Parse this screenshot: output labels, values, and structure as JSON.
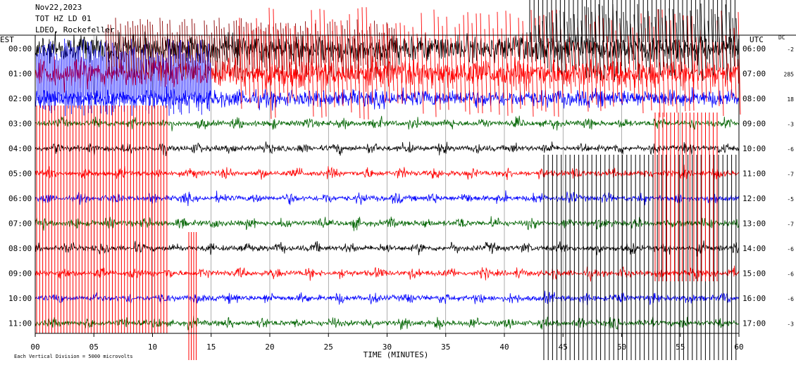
{
  "header": {
    "date": "Nov22,2023",
    "channel": "TOT HZ LD 01",
    "location": "LDEO, Rockefeller"
  },
  "left_zone": "EST",
  "right_zone": "UTC",
  "dc_label": "DC",
  "footer_note": "Each Vertical Division = 5000 microvolts",
  "chart_data": {
    "type": "line",
    "title": "",
    "xlabel": "TIME (MINUTES)",
    "xlim": [
      0,
      60
    ],
    "x_ticks": [
      0,
      5,
      10,
      15,
      20,
      25,
      30,
      35,
      40,
      45,
      50,
      55,
      60
    ],
    "x_tick_labels": [
      "00",
      "05",
      "10",
      "15",
      "20",
      "25",
      "30",
      "35",
      "40",
      "45",
      "50",
      "55",
      "60"
    ],
    "grid": true,
    "trace_colors": [
      "#000000",
      "#ff0000",
      "#0000ff",
      "#006400"
    ],
    "rows": [
      {
        "est": "00:00",
        "utc": "06:00",
        "dc": "-2",
        "color": "#000000",
        "amplitude": "clipped"
      },
      {
        "est": "01:00",
        "utc": "07:00",
        "dc": "285",
        "color": "#ff0000",
        "amplitude": "clipped"
      },
      {
        "est": "02:00",
        "utc": "08:00",
        "dc": "18",
        "color": "#0000ff",
        "amplitude": "high"
      },
      {
        "est": "03:00",
        "utc": "09:00",
        "dc": "-3",
        "color": "#006400",
        "amplitude": "low"
      },
      {
        "est": "04:00",
        "utc": "10:00",
        "dc": "-6",
        "color": "#000000",
        "amplitude": "low"
      },
      {
        "est": "05:00",
        "utc": "11:00",
        "dc": "-7",
        "color": "#ff0000",
        "amplitude": "low"
      },
      {
        "est": "06:00",
        "utc": "12:00",
        "dc": "-5",
        "color": "#0000ff",
        "amplitude": "low"
      },
      {
        "est": "07:00",
        "utc": "13:00",
        "dc": "-7",
        "color": "#006400",
        "amplitude": "low"
      },
      {
        "est": "08:00",
        "utc": "14:00",
        "dc": "-6",
        "color": "#000000",
        "amplitude": "low"
      },
      {
        "est": "09:00",
        "utc": "15:00",
        "dc": "-6",
        "color": "#ff0000",
        "amplitude": "low"
      },
      {
        "est": "10:00",
        "utc": "16:00",
        "dc": "-6",
        "color": "#0000ff",
        "amplitude": "low"
      },
      {
        "est": "11:00",
        "utc": "17:00",
        "dc": "-3",
        "color": "#006400",
        "amplitude": "low"
      }
    ]
  }
}
